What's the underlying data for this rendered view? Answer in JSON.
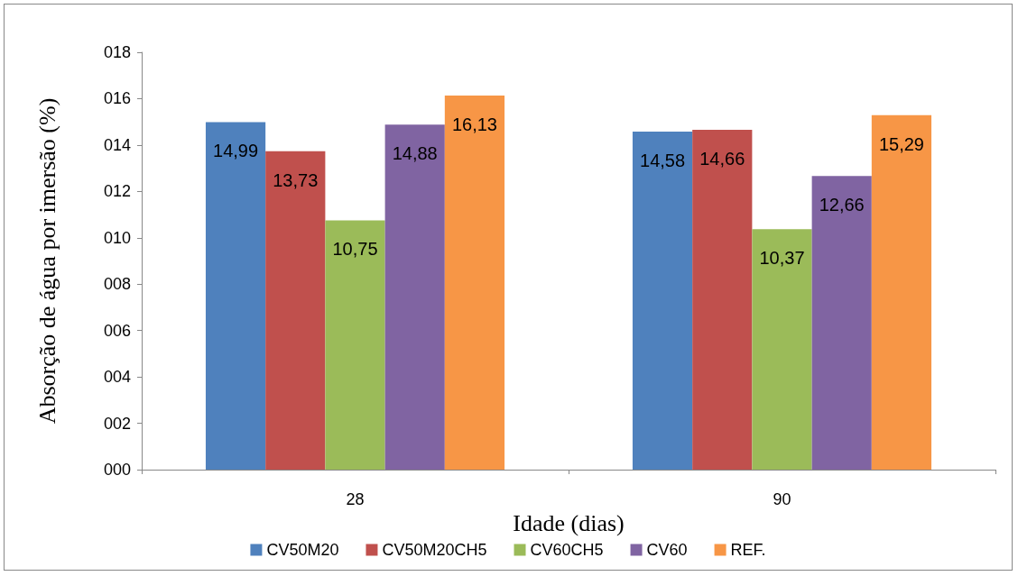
{
  "chart_data": {
    "type": "bar",
    "xlabel": "Idade (dias)",
    "ylabel": "Absorção de água por imersão (%)",
    "categories": [
      "28",
      "90"
    ],
    "series": [
      {
        "name": "CV50M20",
        "color": "#4f81bd",
        "values": [
          14.99,
          14.58
        ],
        "value_labels": [
          "14,99",
          "14,58"
        ]
      },
      {
        "name": "CV50M20CH5",
        "color": "#c0504d",
        "values": [
          13.73,
          14.66
        ],
        "value_labels": [
          "13,73",
          "14,66"
        ]
      },
      {
        "name": "CV60CH5",
        "color": "#9bbb59",
        "values": [
          10.75,
          10.37
        ],
        "value_labels": [
          "10,75",
          "10,37"
        ]
      },
      {
        "name": "CV60",
        "color": "#8064a2",
        "values": [
          14.88,
          12.66
        ],
        "value_labels": [
          "14,88",
          "12,66"
        ]
      },
      {
        "name": "REF.",
        "color": "#f79646",
        "values": [
          16.13,
          15.29
        ],
        "value_labels": [
          "16,13",
          "15,29"
        ]
      }
    ],
    "ylim": [
      0,
      18
    ],
    "yticks": [
      {
        "value": 0,
        "label": "000"
      },
      {
        "value": 2,
        "label": "002"
      },
      {
        "value": 4,
        "label": "004"
      },
      {
        "value": 6,
        "label": "006"
      },
      {
        "value": 8,
        "label": "008"
      },
      {
        "value": 10,
        "label": "010"
      },
      {
        "value": 12,
        "label": "012"
      },
      {
        "value": 14,
        "label": "014"
      },
      {
        "value": 16,
        "label": "016"
      },
      {
        "value": 18,
        "label": "018"
      }
    ],
    "grid": false,
    "legend": "bottom"
  }
}
